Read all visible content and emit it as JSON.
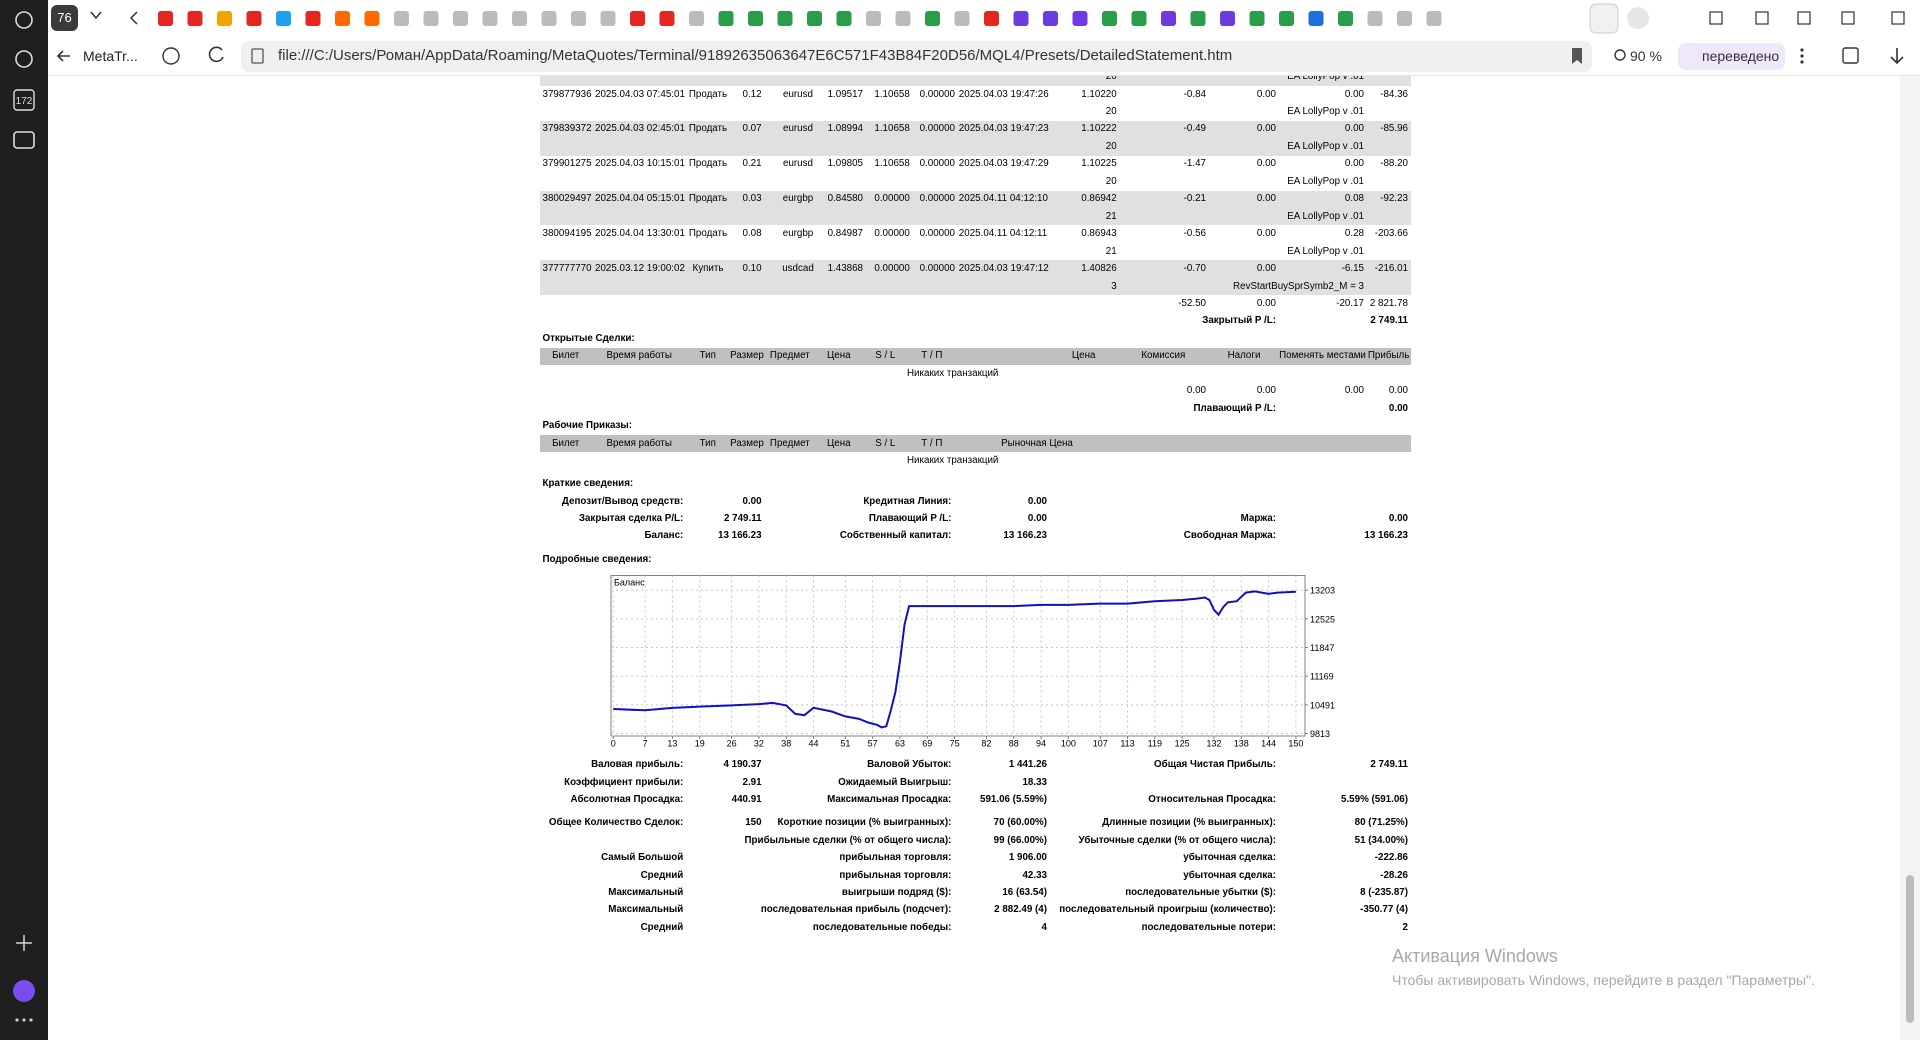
{
  "browser": {
    "tab_count": "76",
    "tab_title": "MetaTr...",
    "url": "file:///C:/Users/Роман/AppData/Roaming/MetaQuotes/Terminal/91892635063647E6C571F43B84F20D56/MQL4/Presets/DetailedStatement.htm",
    "zoom": "90 %",
    "translate": "переведено",
    "sidebar_badge": "172"
  },
  "closed_trades": {
    "top_partial": {
      "magic": "20",
      "comment": "EA LollyPop v .01"
    },
    "trades": [
      {
        "cells": [
          "379877936",
          "2025.04.03 07:45:01",
          "Продать",
          "0.12",
          "eurusd",
          "1.09517",
          "1.10658",
          "0.00000",
          "2025.04.03 19:47:26",
          "1.10220",
          "-0.84",
          "0.00",
          "0.00",
          "-84.36"
        ],
        "magic": "20",
        "comment": "EA LollyPop v .01"
      },
      {
        "cells": [
          "379839372",
          "2025.04.03 02:45:01",
          "Продать",
          "0.07",
          "eurusd",
          "1.08994",
          "1.10658",
          "0.00000",
          "2025.04.03 19:47:23",
          "1.10222",
          "-0.49",
          "0.00",
          "0.00",
          "-85.96"
        ],
        "magic": "20",
        "comment": "EA LollyPop v .01"
      },
      {
        "cells": [
          "379901275",
          "2025.04.03 10:15:01",
          "Продать",
          "0.21",
          "eurusd",
          "1.09805",
          "1.10658",
          "0.00000",
          "2025.04.03 19:47:29",
          "1.10225",
          "-1.47",
          "0.00",
          "0.00",
          "-88.20"
        ],
        "magic": "20",
        "comment": "EA LollyPop v .01"
      },
      {
        "cells": [
          "380029497",
          "2025.04.04 05:15:01",
          "Продать",
          "0.03",
          "eurgbp",
          "0.84580",
          "0.00000",
          "0.00000",
          "2025.04.11 04:12:10",
          "0.86942",
          "-0.21",
          "0.00",
          "0.08",
          "-92.23"
        ],
        "magic": "21",
        "comment": "EA LollyPop v .01"
      },
      {
        "cells": [
          "380094195",
          "2025.04.04 13:30:01",
          "Продать",
          "0.08",
          "eurgbp",
          "0.84987",
          "0.00000",
          "0.00000",
          "2025.04.11 04:12:11",
          "0.86943",
          "-0.56",
          "0.00",
          "0.28",
          "-203.66"
        ],
        "magic": "21",
        "comment": "EA LollyPop v .01"
      },
      {
        "cells": [
          "377777770",
          "2025.03.12 19:00:02",
          "Купить",
          "0.10",
          "usdcad",
          "1.43868",
          "0.00000",
          "0.00000",
          "2025.04.03 19:47:12",
          "1.40826",
          "-0.70",
          "0.00",
          "-6.15",
          "-216.01"
        ],
        "magic": "3",
        "comment": "RevStartBuySprSymb2_M = 3"
      }
    ],
    "totals": [
      "-52.50",
      "0.00",
      "-20.17",
      "2 821.78"
    ],
    "pl_label": "Закрытый P /L:",
    "pl_value": "2 749.11"
  },
  "open_trades": {
    "title": "Открытые Сделки:",
    "header": [
      "Билет",
      "Время работы",
      "Тип",
      "Размер",
      "Предмет",
      "Цена",
      "S / L",
      "Т / П",
      "Цена",
      "Комиссия",
      "Налоги",
      "Поменять местами",
      "Прибыль"
    ],
    "empty": "Никаких транзакций",
    "totals": [
      "0.00",
      "0.00",
      "0.00",
      "0.00"
    ],
    "pl_label": "Плавающий P /L:",
    "pl_value": "0.00"
  },
  "working_orders": {
    "title": "Рабочие Приказы:",
    "header": [
      "Билет",
      "Время работы",
      "Тип",
      "Размер",
      "Предмет",
      "Цена",
      "S / L",
      "Т / П",
      "Рыночная Цена"
    ],
    "empty": "Никаких транзакций"
  },
  "summary": {
    "title": "Краткие сведения:",
    "rows": [
      [
        "Депозит/Вывод средств:",
        "0.00",
        "Кредитная Линия:",
        "0.00",
        null,
        null
      ],
      [
        "Закрытая сделка P/L:",
        "2 749.11",
        "Плавающий P /L:",
        "0.00",
        "Маржа:",
        "0.00"
      ],
      [
        "Баланс:",
        "13 166.23",
        "Собственный капитал:",
        "13 166.23",
        "Свободная Маржа:",
        "13 166.23"
      ]
    ]
  },
  "details": {
    "title": "Подробные сведения:",
    "chart": {
      "type": "line",
      "label": "Баланс",
      "color": "#1010c0",
      "grid": true,
      "xlim": [
        -0.5,
        152
      ],
      "ylim": [
        9755,
        13550
      ],
      "xticks": [
        0,
        7,
        13,
        19,
        26,
        32,
        38,
        44,
        51,
        57,
        63,
        69,
        75,
        82,
        88,
        94,
        100,
        107,
        113,
        119,
        125,
        132,
        138,
        144,
        150
      ],
      "yticks": [
        9813,
        10491,
        11169,
        11847,
        12525,
        13203
      ],
      "x": [
        0,
        7,
        13,
        19,
        26,
        32,
        35,
        38,
        40,
        42,
        44,
        48,
        51,
        54,
        56,
        58,
        59,
        60,
        61,
        62,
        63,
        64,
        65,
        69,
        75,
        82,
        88,
        94,
        100,
        107,
        113,
        119,
        125,
        128,
        130,
        131,
        132,
        133,
        134,
        135,
        137,
        139,
        141,
        144,
        146,
        150
      ],
      "values": [
        10392,
        10363,
        10421,
        10450,
        10479,
        10508,
        10537,
        10479,
        10277,
        10248,
        10421,
        10334,
        10219,
        10161,
        10074,
        10016,
        9958,
        9987,
        10363,
        10798,
        11522,
        12391,
        12826,
        12826,
        12826,
        12826,
        12826,
        12855,
        12855,
        12884,
        12884,
        12942,
        12971,
        13000,
        13029,
        12971,
        12739,
        12623,
        12797,
        12913,
        12942,
        13145,
        13174,
        13116,
        13145,
        13166
      ]
    }
  },
  "stats": {
    "rows": [
      [
        "Валовая прибыль:",
        "4 190.37",
        "Валовой Убыток:",
        "1 441.26",
        "Общая Чистая Прибыль:",
        "2 749.11"
      ],
      [
        "Коэффициент прибыли:",
        "2.91",
        "Ожидаемый Выигрыш:",
        "18.33",
        null,
        null
      ],
      [
        "Абсолютная Просадка:",
        "440.91",
        "Максимальная Просадка:",
        "591.06 (5.59%)",
        "Относительная Просадка:",
        "5.59% (591.06)"
      ],
      [
        "Общее Количество Сделок:",
        "150",
        "Короткие позиции (% выигранных):",
        "70 (60.00%)",
        "Длинные позиции (% выигранных):",
        "80 (71.25%)"
      ],
      [
        null,
        null,
        "Прибыльные сделки (% от общего числа):",
        "99 (66.00%)",
        "Убыточные сделки (% от общего числа):",
        "51 (34.00%)"
      ],
      [
        "Самый Большой",
        null,
        "прибыльная торговля:",
        "1 906.00",
        "убыточная сделка:",
        "-222.86"
      ],
      [
        "Средний",
        null,
        "прибыльная торговля:",
        "42.33",
        "убыточная сделка:",
        "-28.26"
      ],
      [
        "Максимальный",
        null,
        "выигрыши подряд ($):",
        "16 (63.54)",
        "последовательные убытки ($):",
        "8 (-235.87)"
      ],
      [
        "Максимальный",
        null,
        "последовательная прибыль (подсчет):",
        "2 882.49 (4)",
        "последовательный проигрыш (количество):",
        "-350.77 (4)"
      ],
      [
        "Средний",
        null,
        "последовательные победы:",
        "4",
        "последовательные потери:",
        "2"
      ]
    ]
  },
  "windows": {
    "title": "Активация Windows",
    "text": "Чтобы активировать Windows, перейдите в раздел \"Параметры\"."
  }
}
